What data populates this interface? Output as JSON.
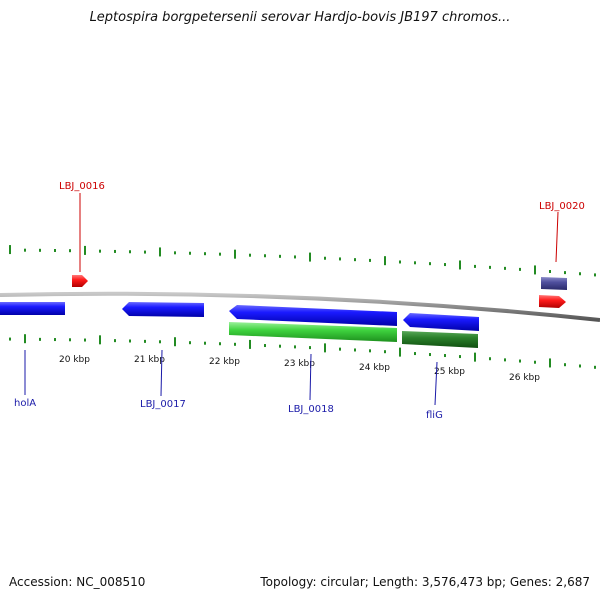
{
  "title": "Leptospira borgpetersenii serovar Hardjo-bovis JB197 chromos...",
  "footer": {
    "accession": "Accession: NC_008510",
    "summary": "Topology: circular; Length: 3,576,473 bp; Genes: 2,687"
  },
  "colors": {
    "backbone": "#888888",
    "forward_gene": "#ff0000",
    "reverse_gene_blue": "#0000ee",
    "reverse_gene_green": "#33cc33",
    "reverse_gene_dark_green": "#1f7a1f",
    "purple_gene": "#4a4a9a",
    "tick_green": "#228b22",
    "label_red": "#cc0000",
    "label_blue": "#1a1aa8"
  },
  "diagram": {
    "scale_labels": [
      "20 kbp",
      "21 kbp",
      "22 kbp",
      "23 kbp",
      "24 kbp",
      "25 kbp",
      "26 kbp"
    ],
    "gene_labels": [
      {
        "name": "LBJ_0016",
        "strand": "forward"
      },
      {
        "name": "LBJ_0020",
        "strand": "forward"
      },
      {
        "name": "holA",
        "strand": "reverse"
      },
      {
        "name": "LBJ_0017",
        "strand": "reverse"
      },
      {
        "name": "LBJ_0018",
        "strand": "reverse"
      },
      {
        "name": "fliG",
        "strand": "reverse"
      }
    ]
  }
}
